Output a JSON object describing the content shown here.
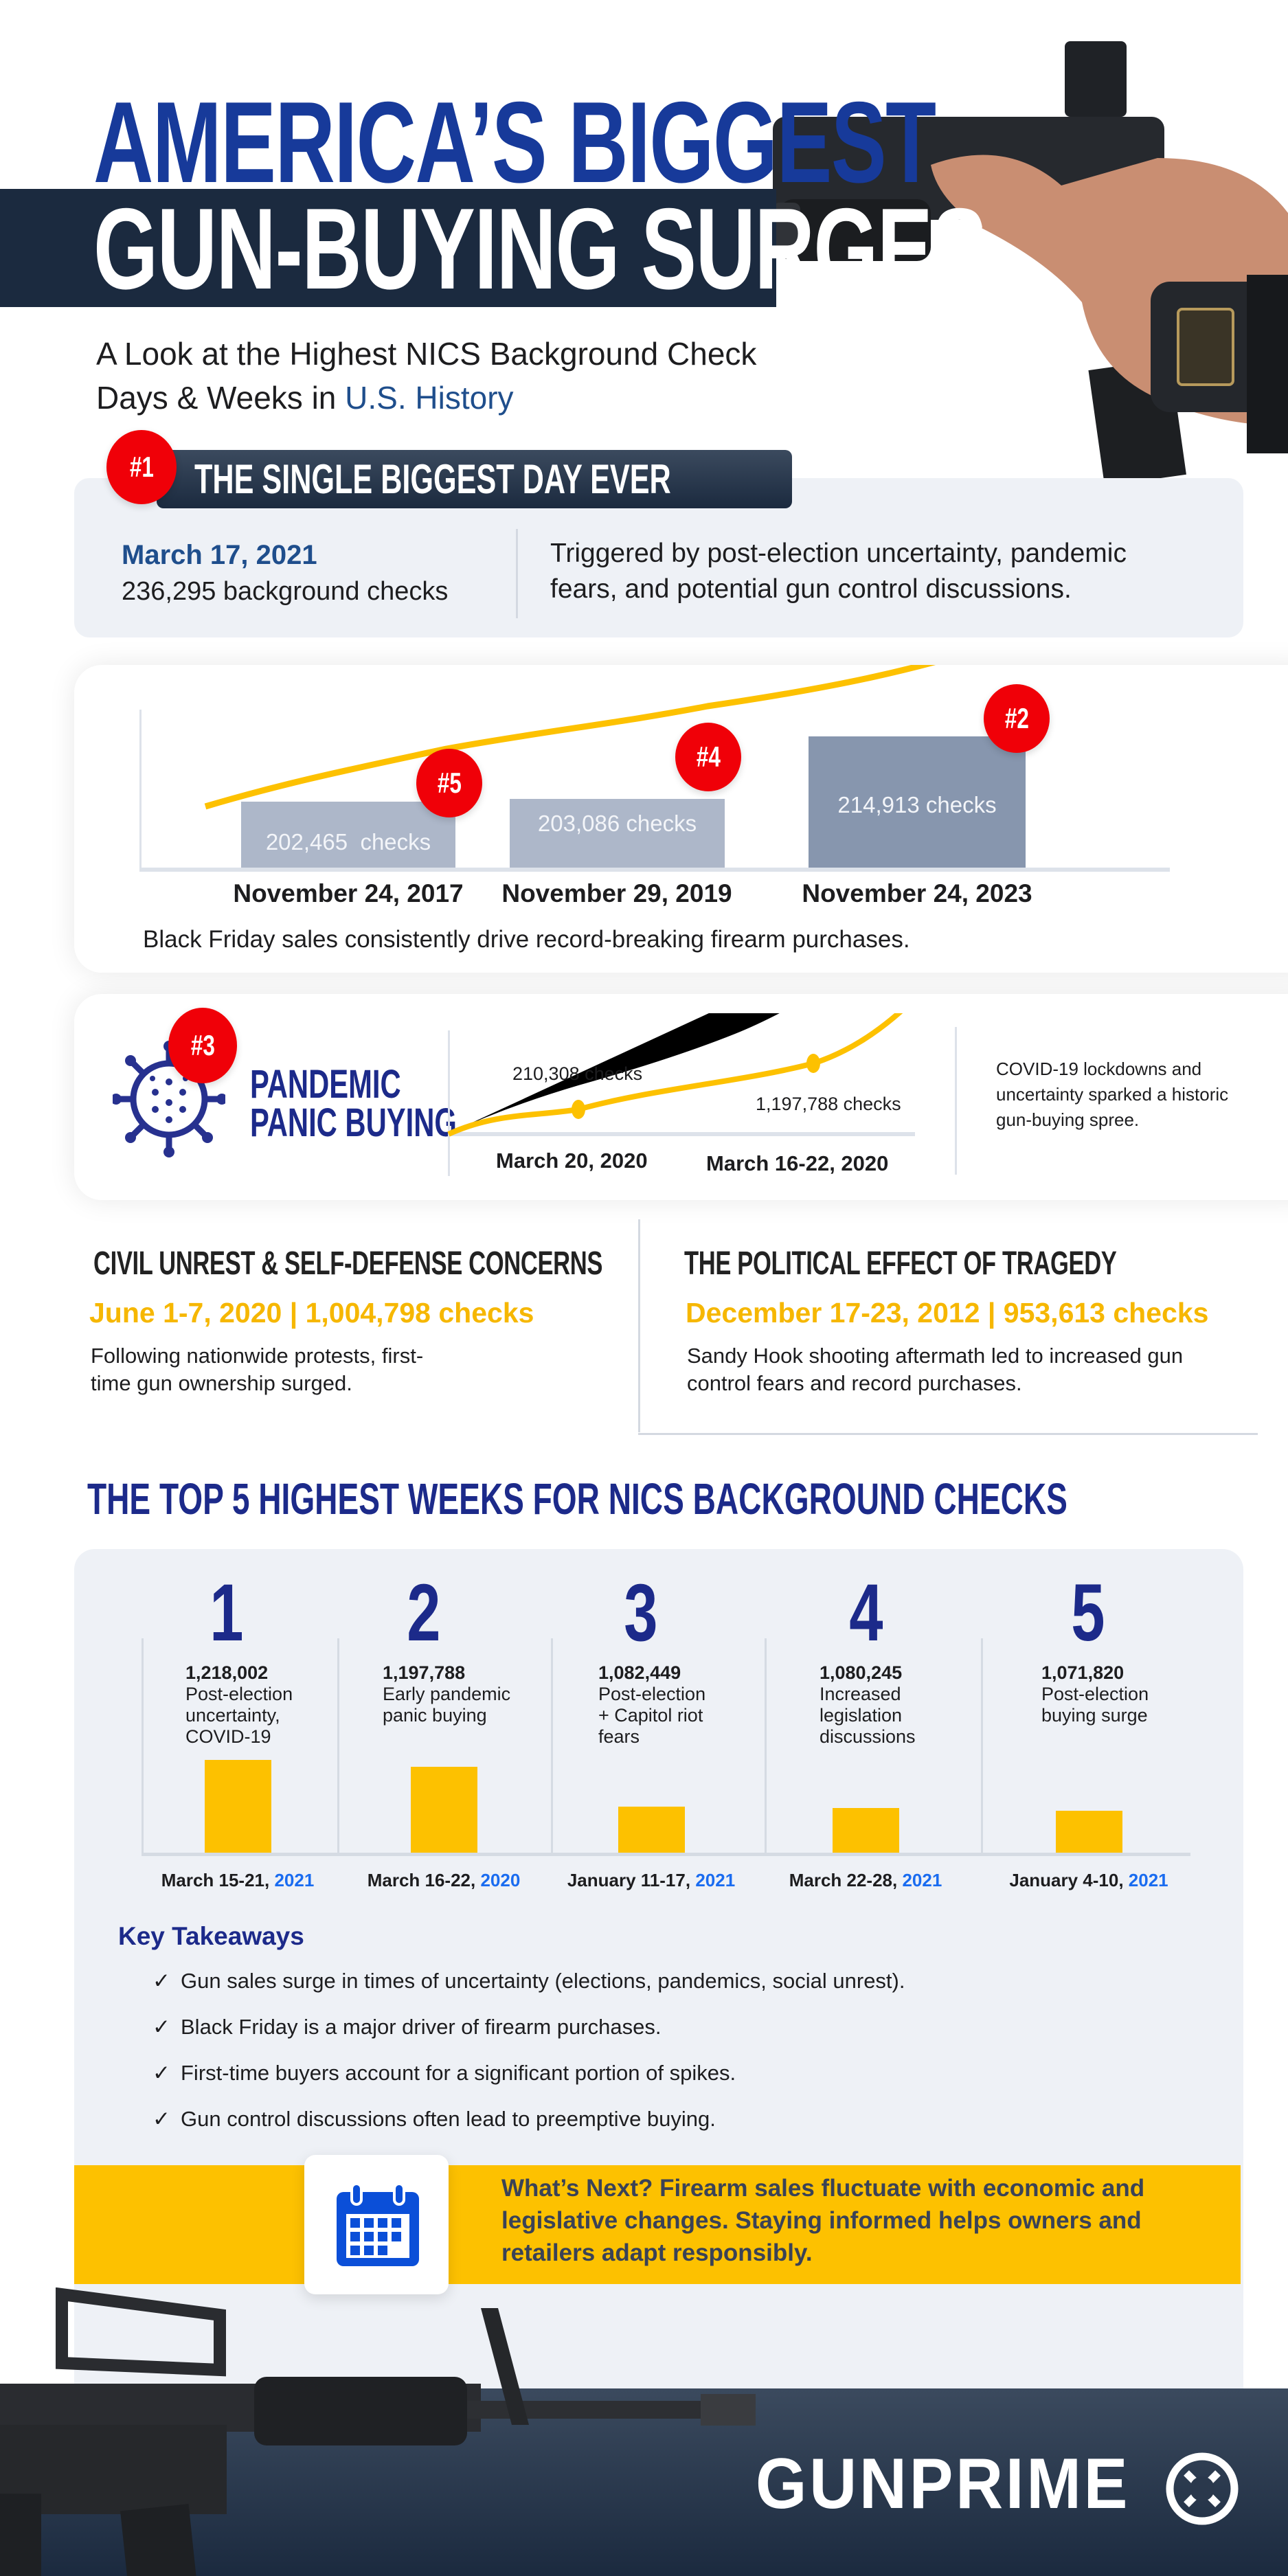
{
  "header": {
    "title_line1": "AMERICA’S BIGGEST",
    "title_line2": "GUN-BUYING SURGES",
    "subtitle_line1": "A Look at the Highest NICS Background Check",
    "subtitle_line2_prefix": "Days & Weeks in ",
    "subtitle_line2_highlight": "U.S. History"
  },
  "biggest_day": {
    "rank": "#1",
    "heading": "THE SINGLE BIGGEST DAY EVER",
    "date": "March 17, 2021",
    "checks": "236,295 background checks",
    "description_line1": "Triggered by post-election uncertainty, pandemic",
    "description_line2": "fears, and potential gun control discussions."
  },
  "black_friday": {
    "bars": [
      {
        "rank": "#5",
        "date": "November 24, 2017",
        "value": 202465,
        "label": "202,465  checks"
      },
      {
        "rank": "#4",
        "date": "November 29, 2019",
        "value": 203086,
        "label": "203,086 checks"
      },
      {
        "rank": "#2",
        "date": "November 24, 2023",
        "value": 214913,
        "label": "214,913 checks"
      }
    ],
    "caption": "Black Friday sales consistently drive record-breaking firearm purchases.",
    "colors": {
      "bar": "#adb7c9",
      "bar_highlight": "#8796ae",
      "trend": "#fdc100",
      "badge": "#f00008"
    }
  },
  "pandemic": {
    "rank": "#3",
    "title_line1": "PANDEMIC",
    "title_line2": "PANIC BUYING",
    "point1_label": "210,308 checks",
    "point1_date": "March 20, 2020",
    "point2_label": "1,197,788 checks",
    "point2_date": "March 16-22, 2020",
    "description_line1": "COVID-19 lockdowns and",
    "description_line2": "uncertainty sparked a historic",
    "description_line3": "gun-buying spree."
  },
  "civil_unrest": {
    "heading": "CIVIL UNREST & SELF-DEFENSE CONCERNS",
    "stat": "June 1-7, 2020 | 1,004,798 checks",
    "body_line1": "Following nationwide protests, first-",
    "body_line2": "time gun ownership surged."
  },
  "tragedy": {
    "heading": "THE POLITICAL EFFECT OF TRAGEDY",
    "stat": "December 17-23, 2012 | 953,613 checks",
    "body_line1": "Sandy Hook shooting aftermath led to increased gun",
    "body_line2": "control fears and record purchases."
  },
  "top5": {
    "heading": "THE TOP 5 HIGHEST WEEKS FOR NICS BACKGROUND CHECKS",
    "weeks": [
      {
        "rank": "1",
        "value_label": "1,218,002",
        "reason": [
          "Post-election",
          "uncertainty,",
          "COVID-19"
        ],
        "date": "March 15-21, ",
        "year": "2021"
      },
      {
        "rank": "2",
        "value_label": "1,197,788",
        "reason": [
          "Early pandemic",
          "panic buying"
        ],
        "date": "March 16-22, ",
        "year": "2020"
      },
      {
        "rank": "3",
        "value_label": "1,082,449",
        "reason": [
          "Post-election",
          "+ Capitol riot",
          "fears"
        ],
        "date": "January 11-17, ",
        "year": "2021"
      },
      {
        "rank": "4",
        "value_label": "1,080,245",
        "reason": [
          "Increased",
          "legislation",
          "discussions"
        ],
        "date": "March 22-28, ",
        "year": "2021"
      },
      {
        "rank": "5",
        "value_label": "1,071,820",
        "reason": [
          "Post-election",
          "buying surge"
        ],
        "date": "January 4-10, ",
        "year": "2021"
      }
    ]
  },
  "chart_data": {
    "type": "bar",
    "categories": [
      "March 15-21, 2021",
      "March 16-22, 2020",
      "January 11-17, 2021",
      "March 22-28, 2021",
      "January 4-10, 2021"
    ],
    "values": [
      1218002,
      1197788,
      1082449,
      1080245,
      1071820
    ],
    "title": "THE TOP 5 HIGHEST WEEKS FOR NICS BACKGROUND CHECKS",
    "xlabel": "",
    "ylabel": "",
    "grid": false,
    "colors": {
      "bar": "#fdc100",
      "rank": "#1c2a8a",
      "year": "#1a6cf0"
    }
  },
  "takeaways": {
    "heading": "Key Takeaways",
    "check_icon": "✓",
    "items": [
      "Gun sales surge in times of uncertainty (elections, pandemics, social unrest).",
      "Black Friday is a major driver of firearm purchases.",
      "First-time buyers account for a significant portion of spikes.",
      "Gun control discussions often lead to preemptive buying."
    ]
  },
  "whats_next": {
    "line1": "What’s Next? Firearm sales fluctuate with economic and",
    "line2": "legislative changes. Staying informed helps owners and",
    "line3": "retailers adapt responsibly.",
    "icon": "calendar-icon"
  },
  "footer": {
    "brand": "GUNPRIME"
  }
}
